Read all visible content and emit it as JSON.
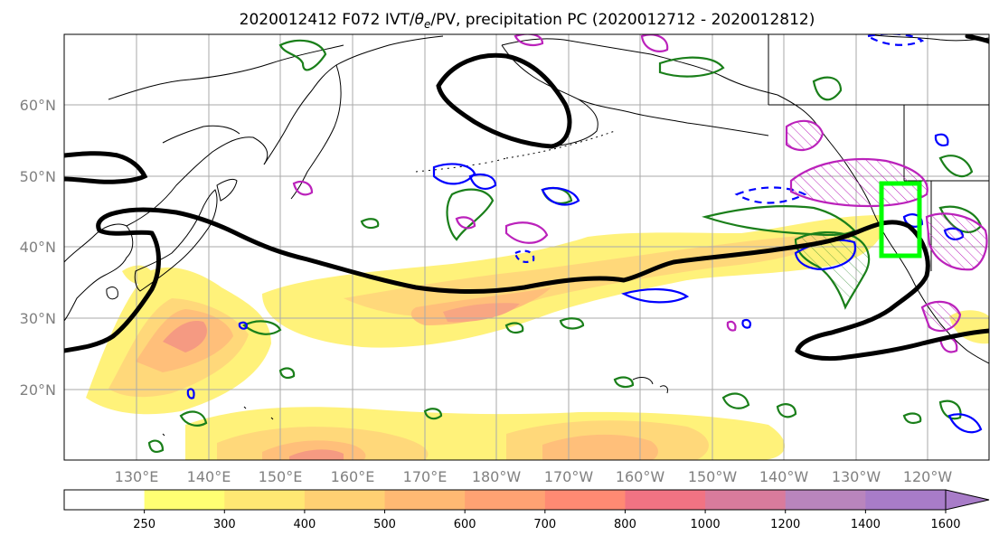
{
  "title": {
    "prefix": "2020012412 F072 IVT/",
    "theta": "θ",
    "theta_sub": "e",
    "suffix": "/PV, precipitation PC (2020012712 - 2020012812)"
  },
  "map": {
    "lat_labels": [
      "60°N",
      "50°N",
      "40°N",
      "30°N",
      "20°N"
    ],
    "lon_labels": [
      "130°E",
      "140°E",
      "150°E",
      "160°E",
      "170°E",
      "180°W",
      "170°W",
      "160°W",
      "150°W",
      "140°W",
      "130°W",
      "120°W"
    ],
    "grid": true,
    "extent": {
      "lon": [
        120,
        250
      ],
      "lat": [
        10,
        70
      ]
    }
  },
  "colorbar": {
    "ticks": [
      "250",
      "300",
      "400",
      "500",
      "600",
      "700",
      "800",
      "1000",
      "1200",
      "1400",
      "1600"
    ],
    "colors": [
      "#ffffff",
      "#ffff73",
      "#ffe873",
      "#ffd073",
      "#ffb973",
      "#ffa273",
      "#ff8a73",
      "#f17383",
      "#d97b9c",
      "#b985bd",
      "#a87cc8"
    ],
    "extend": "max"
  },
  "colors": {
    "ivt_low": "#fff27a",
    "ivt_mid": "#ffc97a",
    "ivt_high": "#f59a82",
    "theta_e_contour": "#000000",
    "pv_positive": "#1a7f1a",
    "pv_negative": "#0000ff",
    "precip_pc": "#bb22bb",
    "target_box": "#00ff00",
    "coastline": "#000000",
    "grid": "#aaaaaa"
  }
}
